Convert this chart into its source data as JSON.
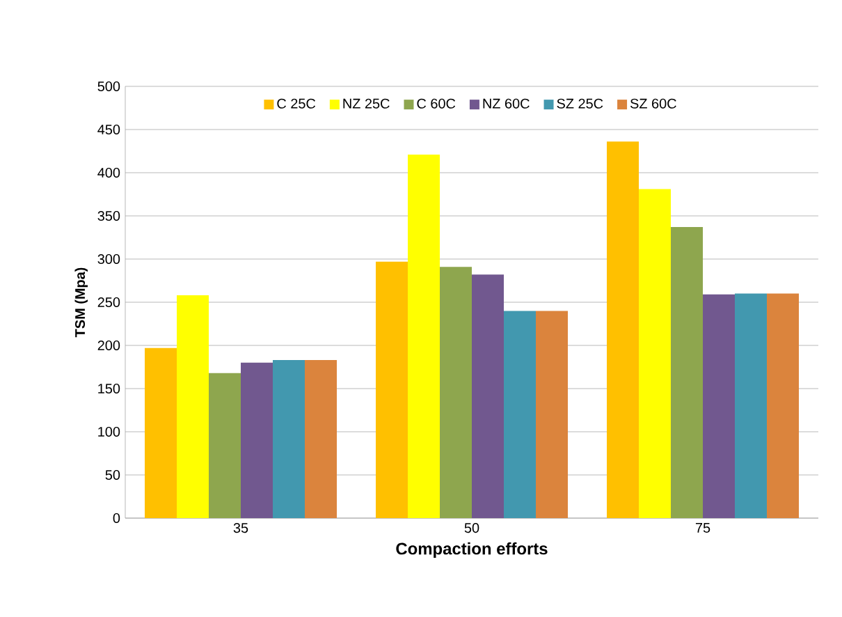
{
  "chart_data": {
    "type": "bar",
    "xlabel": "Compaction efforts",
    "ylabel": "TSM (Mpa)",
    "categories": [
      "35",
      "50",
      "75"
    ],
    "series": [
      {
        "name": "C 25C",
        "color": "#ffc000",
        "values": [
          197,
          297,
          436
        ]
      },
      {
        "name": "NZ 25C",
        "color": "#ffff00",
        "values": [
          258,
          421,
          381
        ]
      },
      {
        "name": "C 60C",
        "color": "#8ea64e",
        "values": [
          168,
          291,
          337
        ]
      },
      {
        "name": "NZ 60C",
        "color": "#71588f",
        "values": [
          180,
          282,
          259
        ]
      },
      {
        "name": "SZ 25C",
        "color": "#4298af",
        "values": [
          183,
          240,
          260
        ]
      },
      {
        "name": "SZ 60C",
        "color": "#db843d",
        "values": [
          183,
          240,
          260
        ]
      }
    ],
    "ylim": [
      0,
      500
    ],
    "yticks": [
      0,
      50,
      100,
      150,
      200,
      250,
      300,
      350,
      400,
      450,
      500
    ],
    "grid": "y",
    "legend": "top"
  }
}
